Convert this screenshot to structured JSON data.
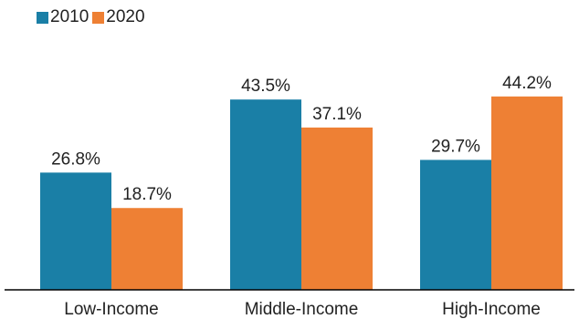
{
  "chart_data": {
    "type": "bar",
    "title": "",
    "xlabel": "",
    "ylabel": "",
    "ylim": [
      0,
      50
    ],
    "grid": false,
    "legend_position": "top-left",
    "categories": [
      "Low-Income",
      "Middle-Income",
      "High-Income"
    ],
    "series": [
      {
        "name": "2010",
        "color": "#1a7fa6",
        "values": [
          26.8,
          43.5,
          29.7
        ],
        "labels": [
          "26.8%",
          "43.5%",
          "29.7%"
        ]
      },
      {
        "name": "2020",
        "color": "#ee8034",
        "values": [
          18.7,
          37.1,
          44.2
        ],
        "labels": [
          "18.7%",
          "37.1%",
          "44.2%"
        ]
      }
    ]
  }
}
